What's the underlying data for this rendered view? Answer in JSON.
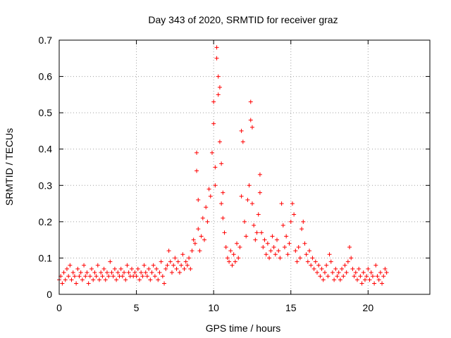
{
  "chart_data": {
    "type": "scatter",
    "title": "Day 343 of 2020, SRMTID for receiver graz",
    "xlabel": "GPS time / hours",
    "ylabel": "SRMTID / TECUs",
    "xlim": [
      0,
      24
    ],
    "ylim": [
      0,
      0.7
    ],
    "x_ticks": [
      0,
      5,
      10,
      15,
      20
    ],
    "x_tick_labels": [
      "0",
      "5",
      "10",
      "15",
      "20"
    ],
    "y_ticks": [
      0,
      0.1,
      0.2,
      0.3,
      0.4,
      0.5,
      0.6,
      0.7
    ],
    "y_tick_labels": [
      "0",
      "0.1",
      "0.2",
      "0.3",
      "0.4",
      "0.5",
      "0.6",
      "0.7"
    ],
    "grid": true,
    "marker": "+",
    "colors": {
      "series": "#ff0000",
      "grid": "#a0a0a0",
      "axis": "#000000"
    },
    "series": [
      {
        "name": "SRMTID",
        "points": [
          [
            0.0,
            0.04
          ],
          [
            0.1,
            0.05
          ],
          [
            0.2,
            0.03
          ],
          [
            0.3,
            0.06
          ],
          [
            0.4,
            0.04
          ],
          [
            0.5,
            0.07
          ],
          [
            0.6,
            0.05
          ],
          [
            0.7,
            0.08
          ],
          [
            0.8,
            0.04
          ],
          [
            0.9,
            0.06
          ],
          [
            1.0,
            0.05
          ],
          [
            1.1,
            0.03
          ],
          [
            1.2,
            0.07
          ],
          [
            1.3,
            0.05
          ],
          [
            1.4,
            0.06
          ],
          [
            1.5,
            0.04
          ],
          [
            1.6,
            0.08
          ],
          [
            1.7,
            0.05
          ],
          [
            1.8,
            0.06
          ],
          [
            1.9,
            0.03
          ],
          [
            2.0,
            0.05
          ],
          [
            2.1,
            0.07
          ],
          [
            2.2,
            0.04
          ],
          [
            2.3,
            0.06
          ],
          [
            2.4,
            0.05
          ],
          [
            2.5,
            0.08
          ],
          [
            2.6,
            0.04
          ],
          [
            2.7,
            0.06
          ],
          [
            2.8,
            0.05
          ],
          [
            2.9,
            0.07
          ],
          [
            3.0,
            0.04
          ],
          [
            3.1,
            0.06
          ],
          [
            3.2,
            0.05
          ],
          [
            3.3,
            0.09
          ],
          [
            3.4,
            0.06
          ],
          [
            3.5,
            0.05
          ],
          [
            3.6,
            0.07
          ],
          [
            3.7,
            0.04
          ],
          [
            3.8,
            0.06
          ],
          [
            3.9,
            0.05
          ],
          [
            4.0,
            0.07
          ],
          [
            4.1,
            0.05
          ],
          [
            4.2,
            0.06
          ],
          [
            4.3,
            0.04
          ],
          [
            4.4,
            0.08
          ],
          [
            4.5,
            0.06
          ],
          [
            4.6,
            0.05
          ],
          [
            4.7,
            0.07
          ],
          [
            4.8,
            0.05
          ],
          [
            4.9,
            0.06
          ],
          [
            5.0,
            0.05
          ],
          [
            5.1,
            0.07
          ],
          [
            5.2,
            0.04
          ],
          [
            5.3,
            0.06
          ],
          [
            5.4,
            0.05
          ],
          [
            5.5,
            0.08
          ],
          [
            5.6,
            0.06
          ],
          [
            5.7,
            0.05
          ],
          [
            5.8,
            0.07
          ],
          [
            5.9,
            0.04
          ],
          [
            6.0,
            0.06
          ],
          [
            6.1,
            0.08
          ],
          [
            6.2,
            0.05
          ],
          [
            6.3,
            0.07
          ],
          [
            6.4,
            0.04
          ],
          [
            6.5,
            0.06
          ],
          [
            6.6,
            0.09
          ],
          [
            6.7,
            0.05
          ],
          [
            6.8,
            0.03
          ],
          [
            6.9,
            0.07
          ],
          [
            7.0,
            0.08
          ],
          [
            7.1,
            0.12
          ],
          [
            7.2,
            0.09
          ],
          [
            7.3,
            0.06
          ],
          [
            7.4,
            0.08
          ],
          [
            7.5,
            0.1
          ],
          [
            7.6,
            0.07
          ],
          [
            7.7,
            0.09
          ],
          [
            7.8,
            0.06
          ],
          [
            7.9,
            0.08
          ],
          [
            8.0,
            0.11
          ],
          [
            8.1,
            0.07
          ],
          [
            8.2,
            0.09
          ],
          [
            8.3,
            0.08
          ],
          [
            8.4,
            0.1
          ],
          [
            8.5,
            0.07
          ],
          [
            8.6,
            0.12
          ],
          [
            8.7,
            0.15
          ],
          [
            8.8,
            0.14
          ],
          [
            8.9,
            0.34
          ],
          [
            8.9,
            0.39
          ],
          [
            9.0,
            0.26
          ],
          [
            9.0,
            0.18
          ],
          [
            9.1,
            0.12
          ],
          [
            9.2,
            0.16
          ],
          [
            9.3,
            0.21
          ],
          [
            9.4,
            0.15
          ],
          [
            9.5,
            0.24
          ],
          [
            9.6,
            0.2
          ],
          [
            9.7,
            0.29
          ],
          [
            9.8,
            0.27
          ],
          [
            9.9,
            0.39
          ],
          [
            10.0,
            0.53
          ],
          [
            10.0,
            0.47
          ],
          [
            10.1,
            0.35
          ],
          [
            10.1,
            0.3
          ],
          [
            10.2,
            0.68
          ],
          [
            10.2,
            0.65
          ],
          [
            10.3,
            0.6
          ],
          [
            10.3,
            0.55
          ],
          [
            10.4,
            0.57
          ],
          [
            10.4,
            0.42
          ],
          [
            10.5,
            0.36
          ],
          [
            10.5,
            0.25
          ],
          [
            10.6,
            0.28
          ],
          [
            10.6,
            0.21
          ],
          [
            10.7,
            0.17
          ],
          [
            10.8,
            0.13
          ],
          [
            10.9,
            0.1
          ],
          [
            11.0,
            0.09
          ],
          [
            11.1,
            0.12
          ],
          [
            11.2,
            0.08
          ],
          [
            11.3,
            0.11
          ],
          [
            11.4,
            0.09
          ],
          [
            11.5,
            0.14
          ],
          [
            11.6,
            0.1
          ],
          [
            11.7,
            0.13
          ],
          [
            11.8,
            0.27
          ],
          [
            11.8,
            0.45
          ],
          [
            11.9,
            0.42
          ],
          [
            12.0,
            0.2
          ],
          [
            12.1,
            0.16
          ],
          [
            12.2,
            0.26
          ],
          [
            12.3,
            0.3
          ],
          [
            12.4,
            0.53
          ],
          [
            12.4,
            0.48
          ],
          [
            12.5,
            0.46
          ],
          [
            12.5,
            0.25
          ],
          [
            12.6,
            0.19
          ],
          [
            12.7,
            0.15
          ],
          [
            12.8,
            0.17
          ],
          [
            12.9,
            0.22
          ],
          [
            13.0,
            0.28
          ],
          [
            13.0,
            0.33
          ],
          [
            13.1,
            0.17
          ],
          [
            13.2,
            0.13
          ],
          [
            13.3,
            0.15
          ],
          [
            13.4,
            0.11
          ],
          [
            13.5,
            0.14
          ],
          [
            13.6,
            0.1
          ],
          [
            13.7,
            0.12
          ],
          [
            13.8,
            0.16
          ],
          [
            13.9,
            0.13
          ],
          [
            14.0,
            0.11
          ],
          [
            14.1,
            0.15
          ],
          [
            14.2,
            0.12
          ],
          [
            14.3,
            0.1
          ],
          [
            14.4,
            0.25
          ],
          [
            14.5,
            0.19
          ],
          [
            14.6,
            0.13
          ],
          [
            14.7,
            0.16
          ],
          [
            14.8,
            0.11
          ],
          [
            14.9,
            0.14
          ],
          [
            15.0,
            0.2
          ],
          [
            15.1,
            0.25
          ],
          [
            15.2,
            0.22
          ],
          [
            15.3,
            0.12
          ],
          [
            15.4,
            0.09
          ],
          [
            15.5,
            0.13
          ],
          [
            15.6,
            0.1
          ],
          [
            15.7,
            0.18
          ],
          [
            15.8,
            0.2
          ],
          [
            15.9,
            0.14
          ],
          [
            16.0,
            0.11
          ],
          [
            16.1,
            0.09
          ],
          [
            16.2,
            0.12
          ],
          [
            16.3,
            0.08
          ],
          [
            16.4,
            0.1
          ],
          [
            16.5,
            0.07
          ],
          [
            16.6,
            0.09
          ],
          [
            16.7,
            0.06
          ],
          [
            16.8,
            0.08
          ],
          [
            16.9,
            0.05
          ],
          [
            17.0,
            0.07
          ],
          [
            17.1,
            0.04
          ],
          [
            17.2,
            0.06
          ],
          [
            17.3,
            0.08
          ],
          [
            17.4,
            0.05
          ],
          [
            17.5,
            0.11
          ],
          [
            17.6,
            0.09
          ],
          [
            17.7,
            0.06
          ],
          [
            17.8,
            0.04
          ],
          [
            17.9,
            0.07
          ],
          [
            18.0,
            0.05
          ],
          [
            18.1,
            0.06
          ],
          [
            18.2,
            0.04
          ],
          [
            18.3,
            0.07
          ],
          [
            18.4,
            0.05
          ],
          [
            18.5,
            0.08
          ],
          [
            18.6,
            0.06
          ],
          [
            18.7,
            0.09
          ],
          [
            18.8,
            0.13
          ],
          [
            18.9,
            0.1
          ],
          [
            19.0,
            0.07
          ],
          [
            19.1,
            0.05
          ],
          [
            19.2,
            0.06
          ],
          [
            19.3,
            0.04
          ],
          [
            19.4,
            0.07
          ],
          [
            19.5,
            0.05
          ],
          [
            19.6,
            0.03
          ],
          [
            19.7,
            0.06
          ],
          [
            19.8,
            0.04
          ],
          [
            19.9,
            0.05
          ],
          [
            20.0,
            0.07
          ],
          [
            20.1,
            0.04
          ],
          [
            20.2,
            0.06
          ],
          [
            20.3,
            0.05
          ],
          [
            20.4,
            0.03
          ],
          [
            20.5,
            0.08
          ],
          [
            20.6,
            0.05
          ],
          [
            20.7,
            0.04
          ],
          [
            20.8,
            0.06
          ],
          [
            20.9,
            0.03
          ],
          [
            21.0,
            0.05
          ],
          [
            21.1,
            0.07
          ],
          [
            21.2,
            0.06
          ]
        ]
      }
    ]
  }
}
